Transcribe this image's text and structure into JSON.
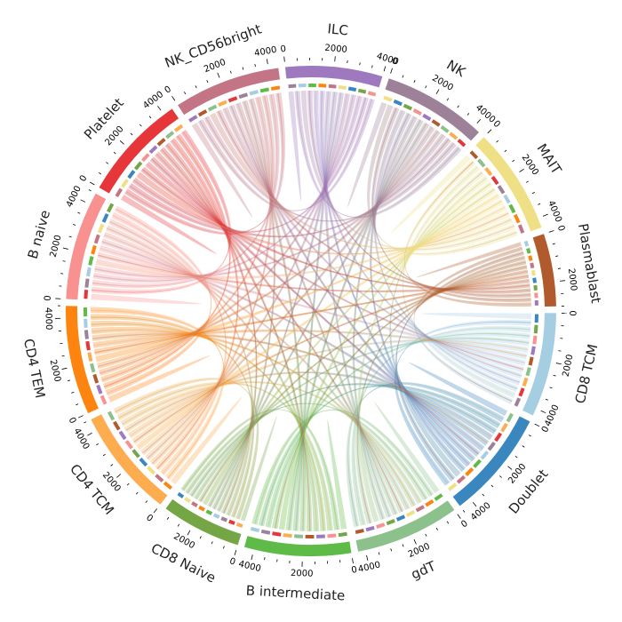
{
  "chart_data": {
    "type": "chord",
    "groups": [
      {
        "name": "CD8 TCM",
        "total": 4300,
        "color": "#a6cee3"
      },
      {
        "name": "Doublet",
        "total": 4500,
        "color": "#3a87bf"
      },
      {
        "name": "gdT",
        "total": 4300,
        "color": "#8cc18c"
      },
      {
        "name": "B intermediate",
        "total": 4400,
        "color": "#5fbb47"
      },
      {
        "name": "CD8 Naive",
        "total": 3300,
        "color": "#75a646"
      },
      {
        "name": "CD4 TCM",
        "total": 4500,
        "color": "#fdac4f"
      },
      {
        "name": "CD4 TEM",
        "total": 4500,
        "color": "#fe8410"
      },
      {
        "name": "B naive",
        "total": 4500,
        "color": "#f8918f"
      },
      {
        "name": "Platelet",
        "total": 4400,
        "color": "#e6363a"
      },
      {
        "name": "NK_CD56bright",
        "total": 4400,
        "color": "#c37585"
      },
      {
        "name": "ILC",
        "total": 4000,
        "color": "#9f79bf"
      },
      {
        "name": "NK",
        "total": 4300,
        "color": "#9c8198"
      },
      {
        "name": "MAIT",
        "total": 4400,
        "color": "#f0e085"
      },
      {
        "name": "Plasmablast",
        "total": 3000,
        "color": "#b15a2d"
      }
    ],
    "tick_step": 2000,
    "tick_labels": [
      "0",
      "2000",
      "4000"
    ],
    "title": "",
    "legend": "none"
  }
}
